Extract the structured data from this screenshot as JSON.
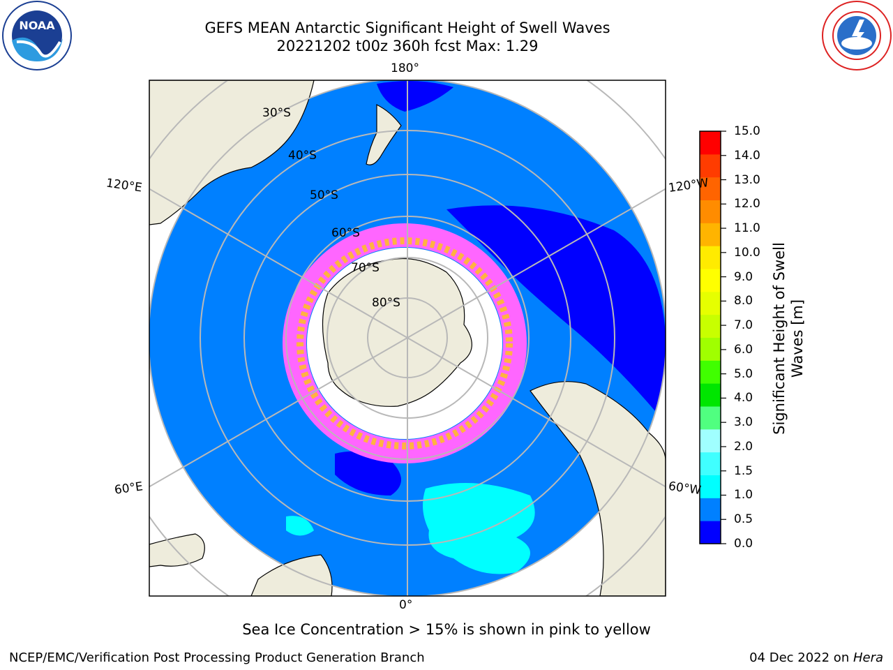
{
  "title": {
    "line1": "GEFS MEAN Antarctic Significant Height of Swell Waves",
    "line2": "20221202 t00z 360h fcst   Max: 1.29"
  },
  "logos": {
    "left": {
      "icon": "noaa-logo",
      "text": "NOAA"
    },
    "right": {
      "icon": "nws-logo"
    }
  },
  "map": {
    "projection": "south-polar-stereographic",
    "longitude_labels": {
      "top": "180°",
      "bottom": "0°",
      "upper_left": "120°E",
      "upper_right": "120°W",
      "lower_left": "60°E",
      "lower_right": "60°W"
    },
    "latitude_labels": [
      "30°S",
      "40°S",
      "50°S",
      "60°S",
      "70°S",
      "80°S"
    ],
    "colors": {
      "land": "#eeecdc",
      "ocean_low": "#0000ff",
      "ocean_mid": "#0080ff",
      "ocean_high": "#00ffff",
      "ice_white": "#ffffff",
      "ice_pink": "#ff66ff",
      "ice_orange": "#ffb340",
      "grid": "#b8b8b8"
    }
  },
  "colorbar": {
    "title": "Significant Height of Swell Waves [m]",
    "ticks": [
      "15.0",
      "14.0",
      "13.0",
      "12.0",
      "11.0",
      "10.0",
      "9.0",
      "8.0",
      "7.0",
      "6.0",
      "5.0",
      "4.0",
      "3.0",
      "2.0",
      "1.5",
      "1.0",
      "0.5",
      "0.0"
    ],
    "colors": [
      "#0000ff",
      "#0080ff",
      "#00ffff",
      "#40ffff",
      "#a0ffff",
      "#50ff80",
      "#00e600",
      "#40ff00",
      "#a0ff00",
      "#c8ff00",
      "#e6ff00",
      "#ffff00",
      "#ffeb00",
      "#ffb400",
      "#ff8c00",
      "#ff6400",
      "#ff3c00",
      "#ff0000"
    ]
  },
  "note": "Sea Ice Concentration > 15% is shown in pink to yellow",
  "footer": {
    "left": "NCEP/EMC/Verification Post Processing Product Generation Branch",
    "right_date": "04 Dec 2022 on ",
    "right_machine": "Hera"
  }
}
